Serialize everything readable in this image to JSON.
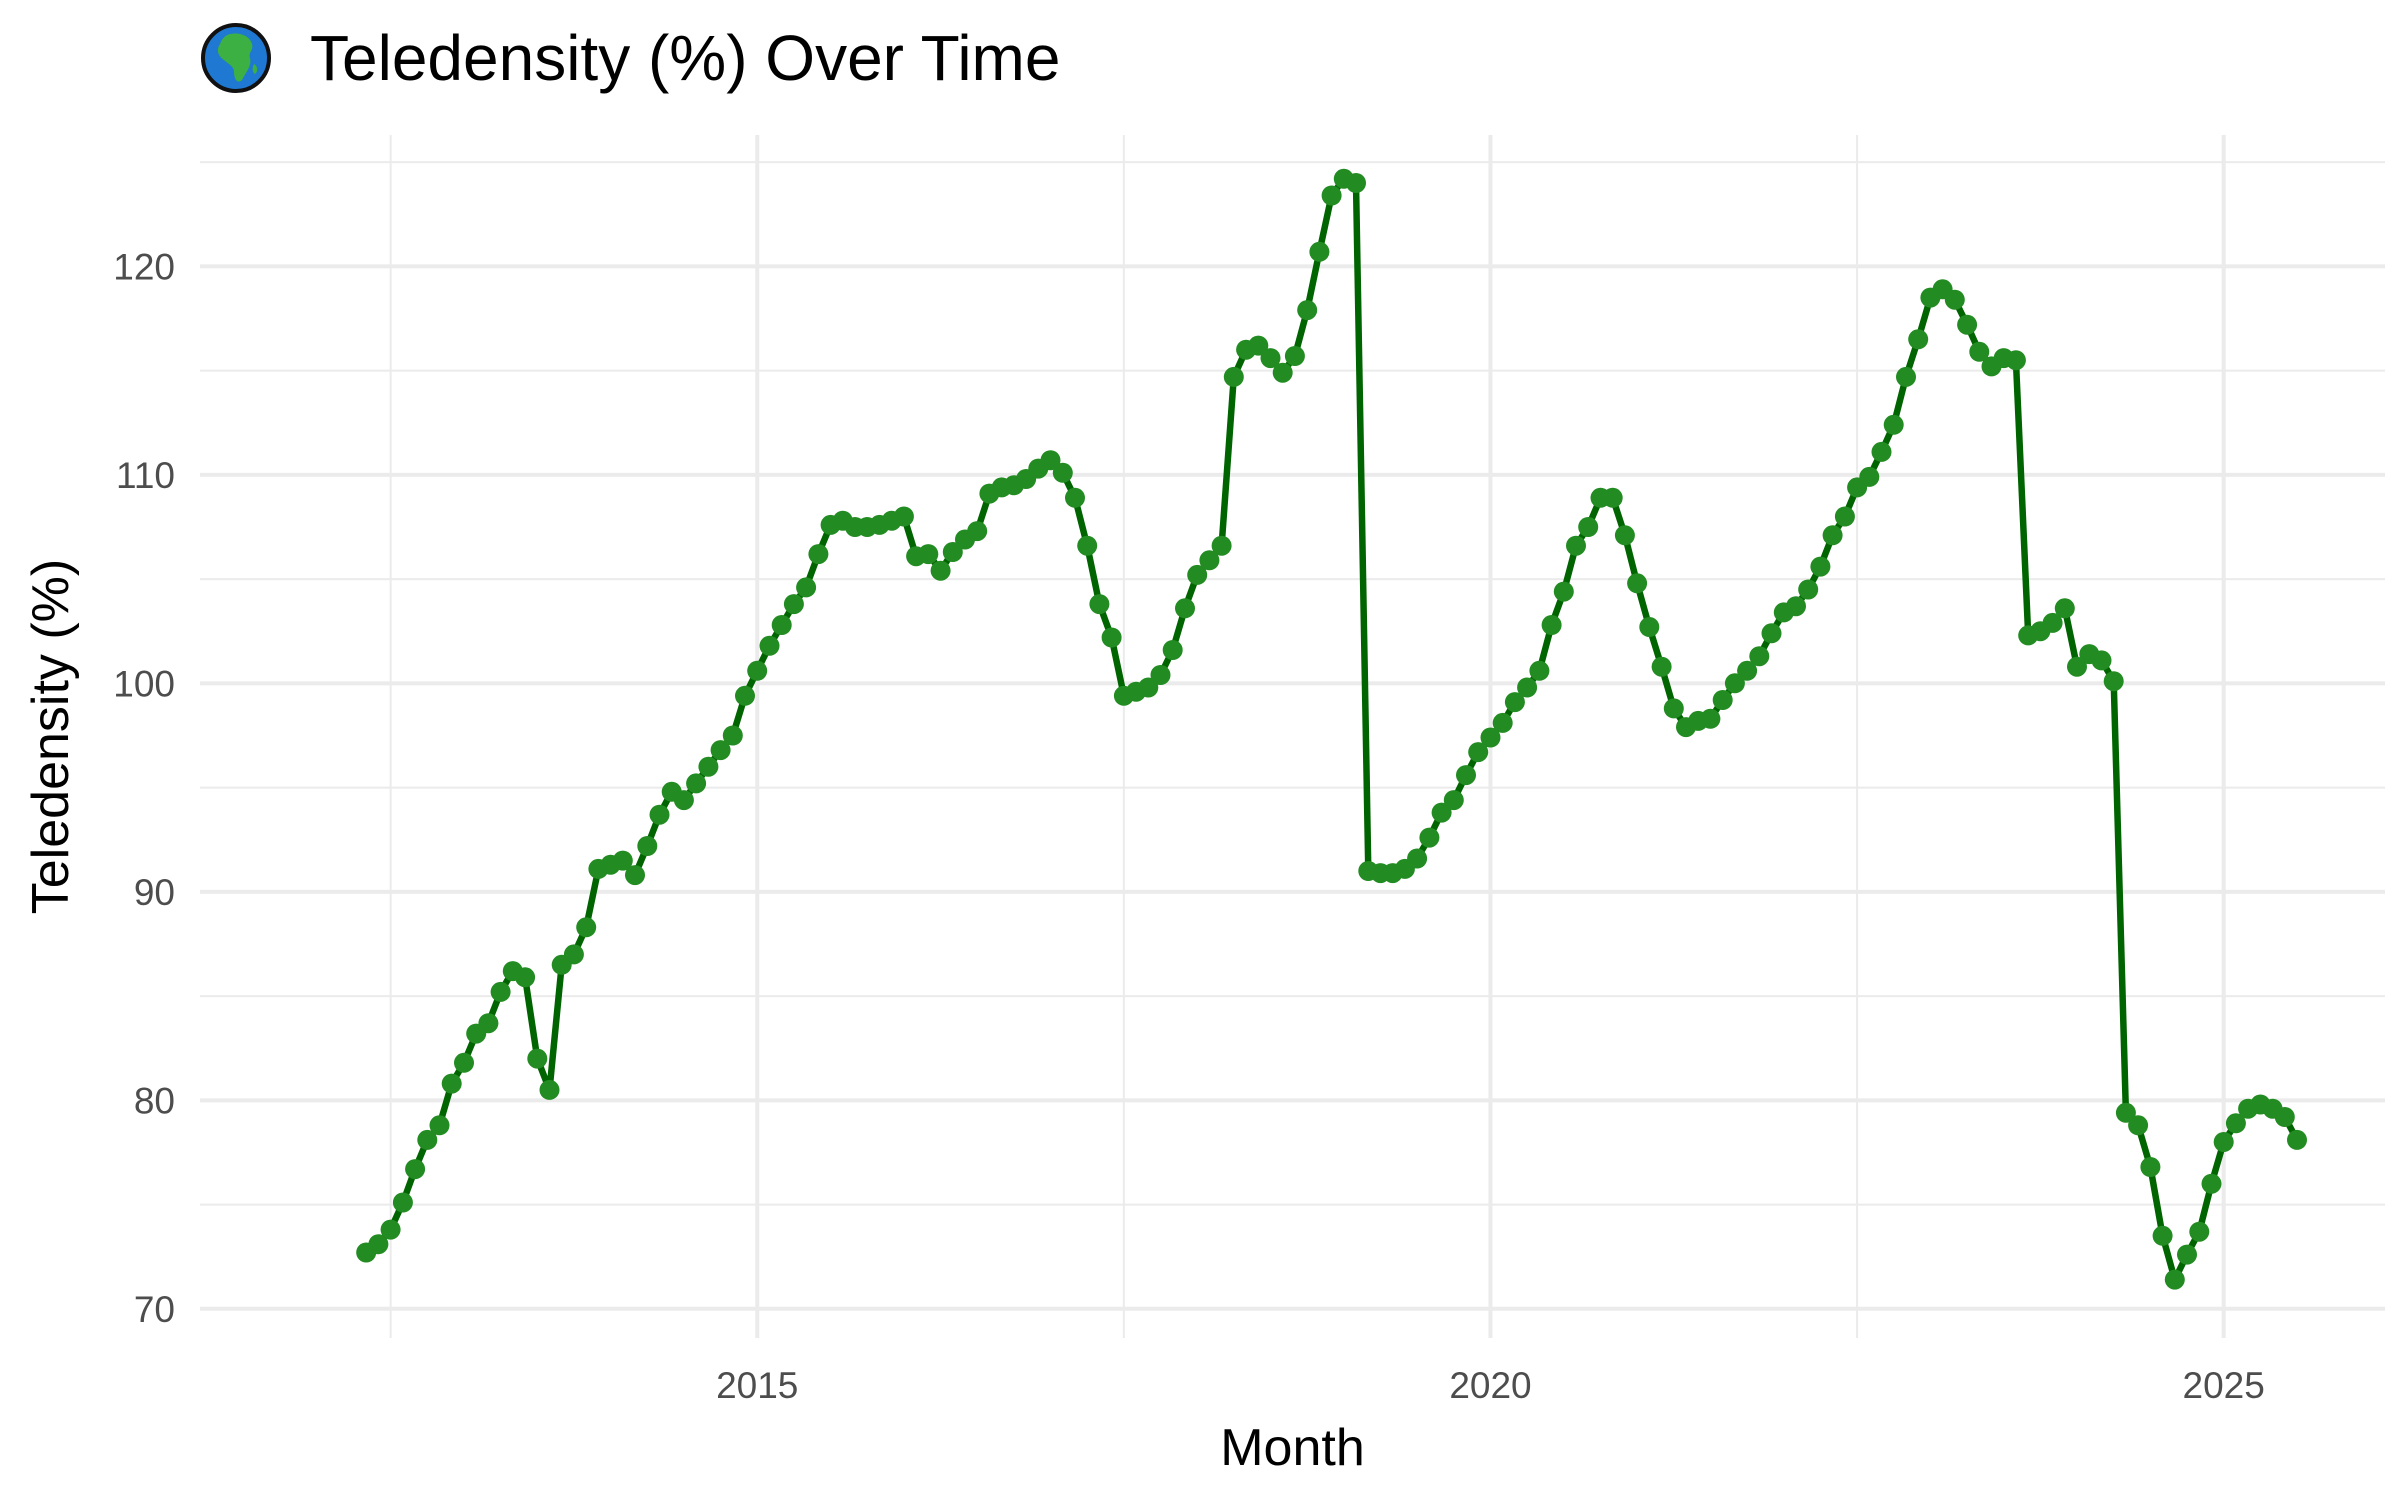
{
  "chart_data": {
    "type": "line",
    "title": "Teledensity (%) Over Time",
    "title_icon": "globe-africa-icon",
    "xlabel": "Month",
    "ylabel": "Teledensity (%)",
    "x_ticks": [
      {
        "label": "2015",
        "value": 2015.0
      },
      {
        "label": "2020",
        "value": 2020.0
      },
      {
        "label": "2025",
        "value": 2025.0
      }
    ],
    "y_ticks": [
      70,
      80,
      90,
      100,
      110,
      120
    ],
    "xlim": [
      2011.2,
      2026.1
    ],
    "ylim": [
      68.6,
      126.3
    ],
    "grid": true,
    "colors": {
      "line": "#006400",
      "point": "#228B22"
    },
    "series": [
      {
        "x": [
          "2012-05",
          "2012-06",
          "2012-07",
          "2012-08",
          "2012-09",
          "2012-10",
          "2012-11",
          "2012-12",
          "2013-01",
          "2013-02",
          "2013-03",
          "2013-04",
          "2013-05",
          "2013-06",
          "2013-07",
          "2013-08",
          "2013-09",
          "2013-10",
          "2013-11",
          "2013-12",
          "2014-01",
          "2014-02",
          "2014-03",
          "2014-04",
          "2014-05",
          "2014-06",
          "2014-07",
          "2014-08",
          "2014-09",
          "2014-10",
          "2014-11",
          "2014-12",
          "2015-01",
          "2015-02",
          "2015-03",
          "2015-04",
          "2015-05",
          "2015-06",
          "2015-07",
          "2015-08",
          "2015-09",
          "2015-10",
          "2015-11",
          "2015-12",
          "2016-01",
          "2016-02",
          "2016-03",
          "2016-04",
          "2016-05",
          "2016-06",
          "2016-07",
          "2016-08",
          "2016-09",
          "2016-10",
          "2016-11",
          "2016-12",
          "2017-01",
          "2017-02",
          "2017-03",
          "2017-04",
          "2017-05",
          "2017-06",
          "2017-07",
          "2017-08",
          "2017-09",
          "2017-10",
          "2017-11",
          "2017-12",
          "2018-01",
          "2018-02",
          "2018-03",
          "2018-04",
          "2018-05",
          "2018-06",
          "2018-07",
          "2018-08",
          "2018-09",
          "2018-10",
          "2018-11",
          "2018-12",
          "2019-01",
          "2019-02",
          "2019-03",
          "2019-04",
          "2019-05",
          "2019-06",
          "2019-07",
          "2019-08",
          "2019-09",
          "2019-10",
          "2019-11",
          "2019-12",
          "2020-01",
          "2020-02",
          "2020-03",
          "2020-04",
          "2020-05",
          "2020-06",
          "2020-07",
          "2020-08",
          "2020-09",
          "2020-10",
          "2020-11",
          "2020-12",
          "2021-01",
          "2021-02",
          "2021-03",
          "2021-04",
          "2021-05",
          "2021-06",
          "2021-07",
          "2021-08",
          "2021-09",
          "2021-10",
          "2021-11",
          "2021-12",
          "2022-01",
          "2022-02",
          "2022-03",
          "2022-04",
          "2022-05",
          "2022-06",
          "2022-07",
          "2022-08",
          "2022-09",
          "2022-10",
          "2022-11",
          "2022-12",
          "2023-01",
          "2023-02",
          "2023-03",
          "2023-04",
          "2023-05",
          "2023-06",
          "2023-07",
          "2023-08",
          "2023-09",
          "2023-10",
          "2023-11",
          "2023-12",
          "2024-01",
          "2024-02",
          "2024-03",
          "2024-04",
          "2024-05",
          "2024-06",
          "2024-07",
          "2024-08",
          "2024-09",
          "2024-10",
          "2024-11",
          "2024-12",
          "2025-01",
          "2025-02",
          "2025-03",
          "2025-04",
          "2025-05",
          "2025-06",
          "2025-07"
        ],
        "y": [
          72.7,
          73.1,
          73.8,
          75.1,
          76.7,
          78.1,
          78.8,
          80.8,
          81.8,
          83.2,
          83.7,
          85.2,
          86.2,
          85.9,
          82.0,
          80.5,
          86.5,
          87.0,
          88.3,
          91.1,
          91.3,
          91.5,
          90.8,
          92.2,
          93.7,
          94.8,
          94.4,
          95.2,
          96.0,
          96.8,
          97.5,
          99.4,
          100.6,
          101.8,
          102.8,
          103.8,
          104.6,
          106.2,
          107.6,
          107.8,
          107.5,
          107.5,
          107.6,
          107.8,
          108.0,
          106.1,
          106.2,
          105.4,
          106.3,
          106.9,
          107.3,
          109.1,
          109.4,
          109.5,
          109.8,
          110.3,
          110.7,
          110.1,
          108.9,
          106.6,
          103.8,
          102.2,
          99.4,
          99.6,
          99.8,
          100.4,
          101.6,
          103.6,
          105.2,
          105.9,
          106.6,
          114.7,
          116.0,
          116.2,
          115.6,
          114.9,
          115.7,
          117.9,
          120.7,
          123.4,
          124.2,
          124.0,
          91.0,
          90.9,
          90.9,
          91.1,
          91.6,
          92.6,
          93.8,
          94.4,
          95.6,
          96.7,
          97.4,
          98.1,
          99.1,
          99.8,
          100.6,
          102.8,
          104.4,
          106.6,
          107.5,
          108.9,
          108.9,
          107.1,
          104.8,
          102.7,
          100.8,
          98.8,
          97.9,
          98.2,
          98.3,
          99.2,
          100.0,
          100.6,
          101.3,
          102.4,
          103.4,
          103.7,
          104.5,
          105.6,
          107.1,
          108.0,
          109.4,
          109.9,
          111.1,
          112.4,
          114.7,
          116.5,
          118.5,
          118.9,
          118.4,
          117.2,
          115.9,
          115.2,
          115.6,
          115.5,
          102.3,
          102.5,
          102.9,
          103.6,
          100.8,
          101.4,
          101.1,
          100.1,
          79.4,
          78.8,
          76.8,
          73.5,
          71.4,
          72.6,
          73.7,
          76.0,
          78.0,
          78.9,
          79.6,
          79.8,
          79.6,
          79.2,
          78.1
        ]
      }
    ]
  }
}
